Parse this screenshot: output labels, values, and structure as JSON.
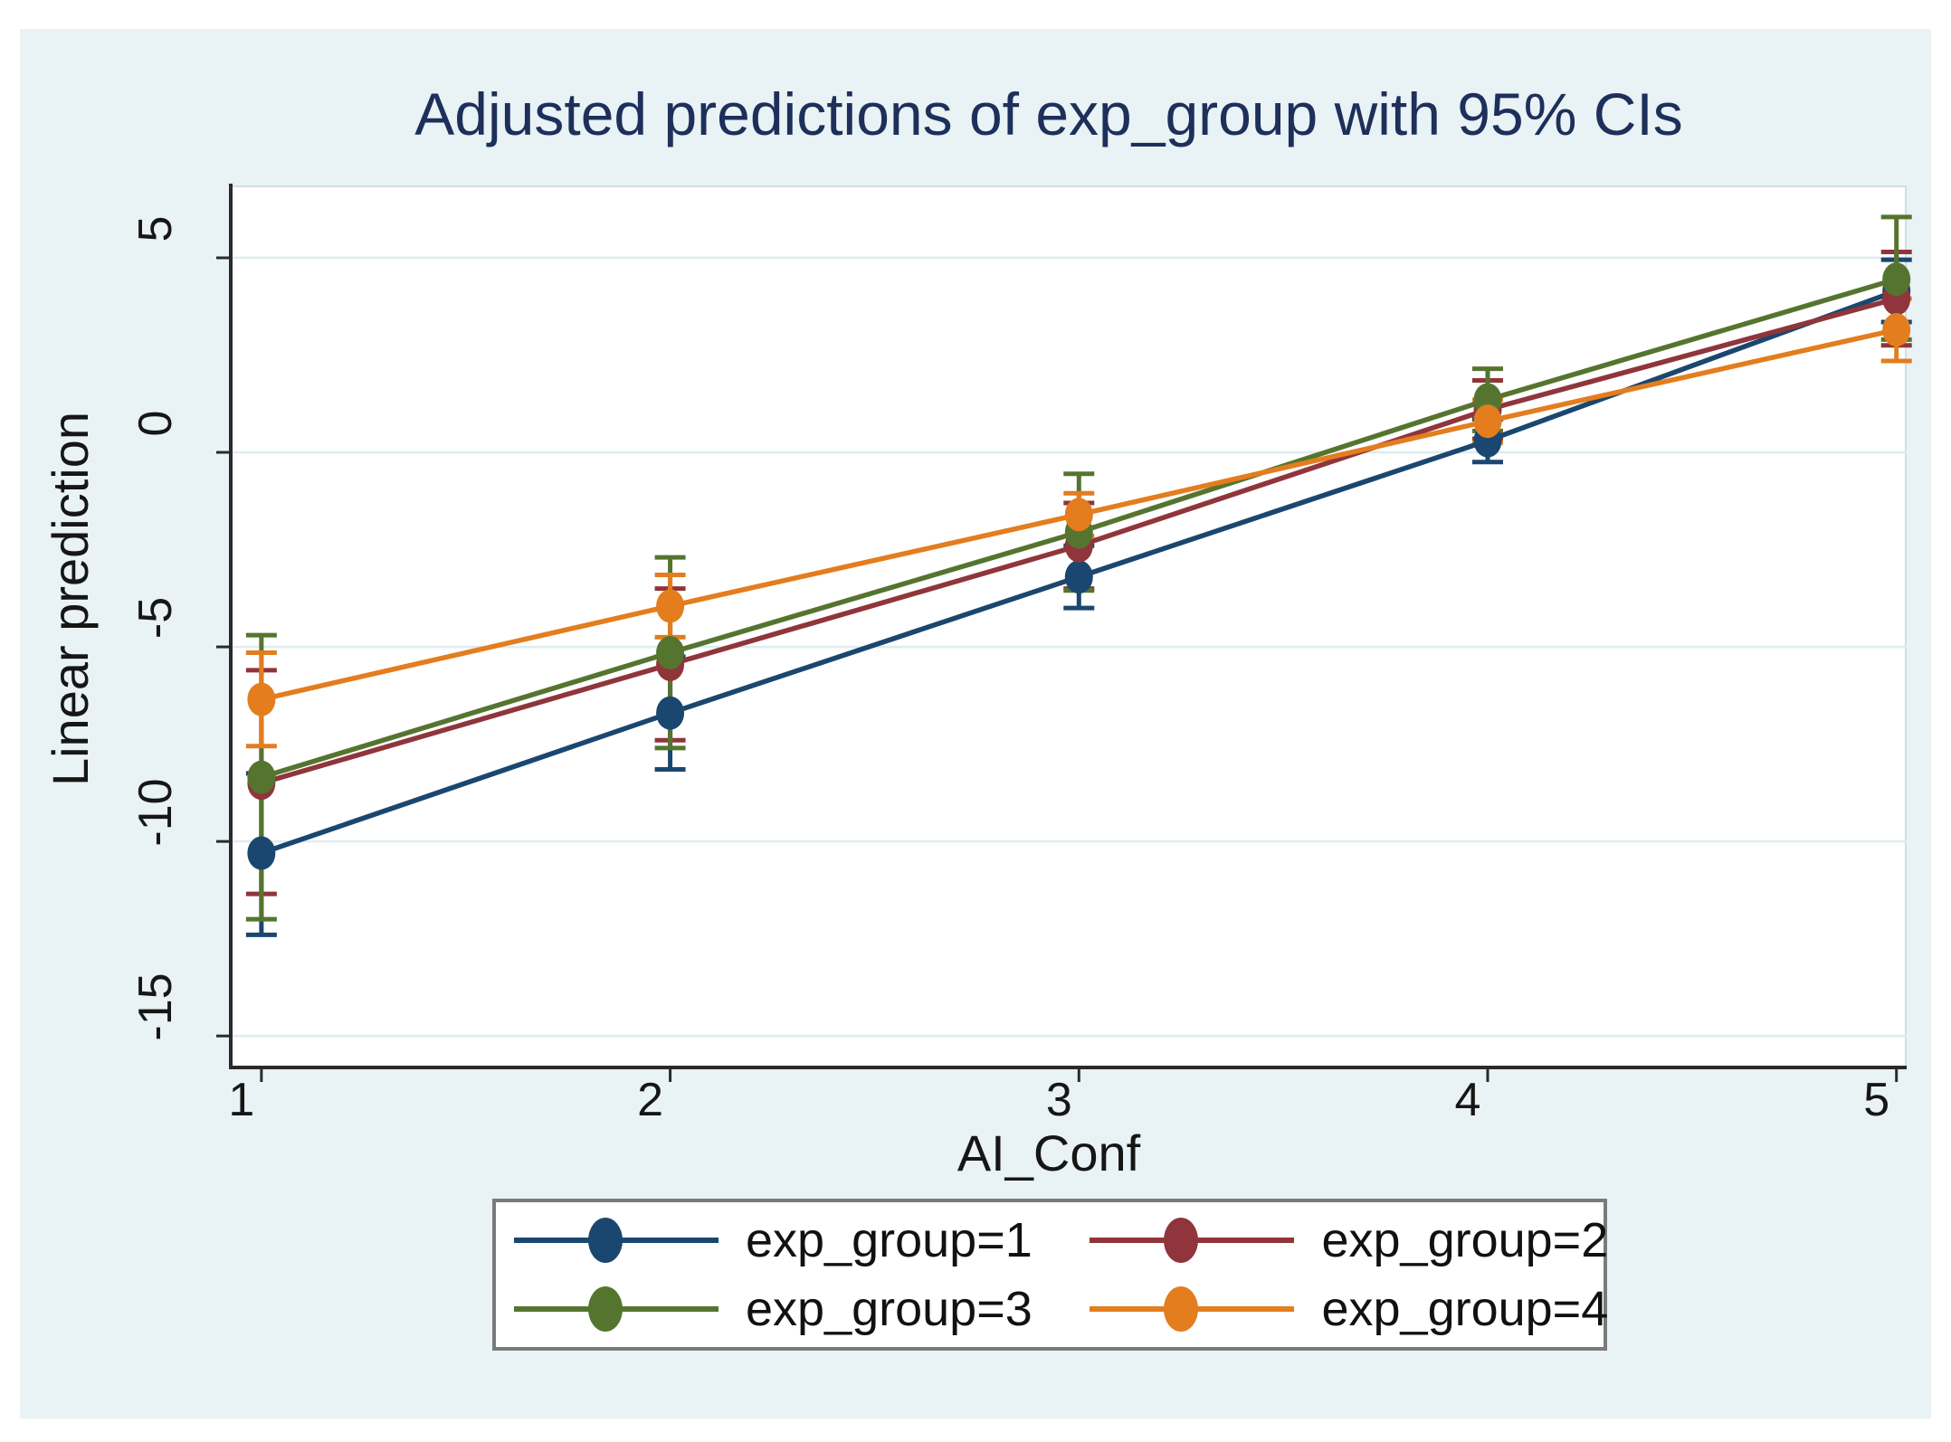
{
  "figure": {
    "title": "Adjusted predictions of exp_group with 95% CIs",
    "title_color": "#1d2f5a",
    "background_color": "#e9f2f4",
    "plot_background_color": "#ffffff",
    "grid_color": "#ddedf0",
    "axis_line_color": "#2a2a2a",
    "legend_border_color": "#7a7a7a"
  },
  "chart_data": {
    "type": "line",
    "subtype": "point-estimates-with-95%-confidence-intervals",
    "title": "Adjusted predictions of exp_group with 95% CIs",
    "xlabel": "AI_Conf",
    "ylabel": "Linear prediction",
    "x": [
      1,
      2,
      3,
      4,
      5
    ],
    "xtick_labels": [
      "1",
      "2",
      "3",
      "4",
      "5"
    ],
    "ytick_values": [
      5,
      0,
      -5,
      -10,
      -15
    ],
    "ytick_labels": [
      "5",
      "0",
      "-5",
      "-10",
      "-15"
    ],
    "xlim": [
      0.925,
      5.025
    ],
    "ylim": [
      -15.81,
      6.86
    ],
    "grid": true,
    "legend_position": "below-plot",
    "series": [
      {
        "name": "exp_group=1",
        "color": "#1a476f",
        "values": [
          -10.3,
          -6.7,
          -3.2,
          0.3,
          4.15
        ],
        "ci_low": [
          -12.4,
          -8.15,
          -4.0,
          -0.25,
          3.35
        ],
        "ci_high": [
          -8.25,
          -5.25,
          -2.4,
          0.85,
          4.95
        ]
      },
      {
        "name": "exp_group=2",
        "color": "#90353b",
        "values": [
          -8.5,
          -5.45,
          -2.4,
          1.1,
          3.95
        ],
        "ci_low": [
          -11.35,
          -7.4,
          -3.5,
          0.35,
          2.75
        ],
        "ci_high": [
          -5.6,
          -3.5,
          -1.3,
          1.85,
          5.15
        ]
      },
      {
        "name": "exp_group=3",
        "color": "#55752f",
        "values": [
          -8.35,
          -5.15,
          -2.05,
          1.35,
          4.45
        ],
        "ci_low": [
          -12.0,
          -7.6,
          -3.55,
          0.55,
          2.9
        ],
        "ci_high": [
          -4.7,
          -2.7,
          -0.55,
          2.15,
          6.05
        ]
      },
      {
        "name": "exp_group=4",
        "color": "#e37d1e",
        "values": [
          -6.35,
          -3.95,
          -1.6,
          0.8,
          3.15
        ],
        "ci_low": [
          -7.55,
          -4.75,
          -2.15,
          0.25,
          2.35
        ],
        "ci_high": [
          -5.15,
          -3.15,
          -1.05,
          1.35,
          3.95
        ]
      }
    ]
  },
  "legend": {
    "entries": [
      {
        "label": "exp_group=1",
        "color": "#1a476f"
      },
      {
        "label": "exp_group=2",
        "color": "#90353b"
      },
      {
        "label": "exp_group=3",
        "color": "#55752f"
      },
      {
        "label": "exp_group=4",
        "color": "#e37d1e"
      }
    ]
  }
}
